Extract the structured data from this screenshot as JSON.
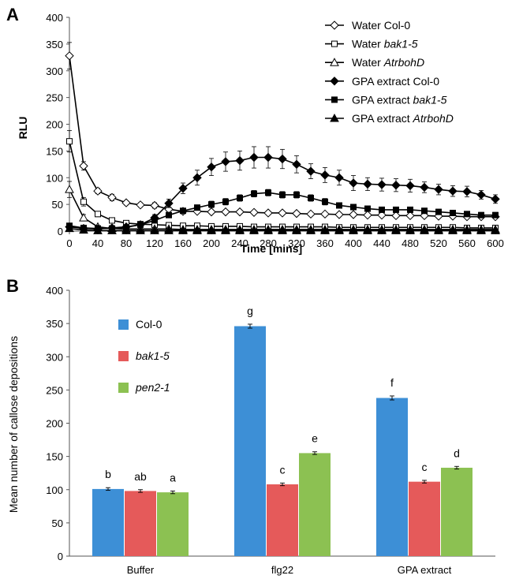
{
  "chart_data": [
    {
      "panel_label": "A",
      "type": "line",
      "xlabel": "Time [mins]",
      "ylabel": "RLU",
      "xlim": [
        0,
        600
      ],
      "ylim": [
        0,
        400
      ],
      "xticks": [
        0,
        40,
        80,
        120,
        160,
        200,
        240,
        280,
        320,
        360,
        400,
        440,
        480,
        520,
        560,
        600
      ],
      "yticks": [
        0,
        50,
        100,
        150,
        200,
        250,
        300,
        350,
        400
      ],
      "legend_position": "top-right",
      "x": [
        0,
        20,
        40,
        60,
        80,
        100,
        120,
        140,
        160,
        180,
        200,
        220,
        240,
        260,
        280,
        300,
        320,
        340,
        360,
        380,
        400,
        420,
        440,
        460,
        480,
        500,
        520,
        540,
        560,
        580,
        600
      ],
      "series": [
        {
          "name_prefix": "Water",
          "name_suffix": "Col-0",
          "suffix_italic": false,
          "marker": "diamond-open",
          "values": [
            328,
            122,
            75,
            63,
            53,
            49,
            48,
            41,
            37,
            37,
            36,
            36,
            36,
            35,
            34,
            34,
            33,
            32,
            32,
            31,
            31,
            30,
            30,
            29,
            29,
            29,
            28,
            28,
            27,
            27,
            27
          ],
          "errors": [
            25,
            8,
            5,
            6,
            4,
            4,
            5,
            3,
            3,
            3,
            3,
            3,
            3,
            3,
            3,
            3,
            3,
            3,
            3,
            3,
            3,
            3,
            3,
            3,
            3,
            3,
            3,
            3,
            3,
            3,
            3
          ]
        },
        {
          "name_prefix": "Water",
          "name_suffix": "bak1-5",
          "suffix_italic": true,
          "marker": "square-open",
          "values": [
            168,
            55,
            32,
            20,
            15,
            13,
            12,
            11,
            10,
            10,
            9,
            9,
            9,
            8,
            8,
            8,
            8,
            8,
            8,
            7,
            7,
            7,
            7,
            7,
            7,
            7,
            7,
            7,
            6,
            6,
            6
          ],
          "errors": [
            20,
            8,
            5,
            3,
            2,
            2,
            2,
            2,
            2,
            2,
            2,
            2,
            2,
            2,
            2,
            2,
            2,
            2,
            2,
            2,
            2,
            2,
            2,
            2,
            2,
            2,
            2,
            2,
            2,
            2,
            2
          ]
        },
        {
          "name_prefix": "Water",
          "name_suffix": "AtrbohD",
          "suffix_italic": true,
          "marker": "triangle-open",
          "values": [
            78,
            25,
            8,
            5,
            4,
            4,
            4,
            4,
            3,
            3,
            3,
            3,
            3,
            3,
            3,
            3,
            3,
            3,
            3,
            3,
            3,
            3,
            3,
            3,
            3,
            3,
            3,
            3,
            3,
            3,
            3
          ],
          "errors": [
            15,
            6,
            2,
            1,
            1,
            1,
            1,
            1,
            1,
            1,
            1,
            1,
            1,
            1,
            1,
            1,
            1,
            1,
            1,
            1,
            1,
            1,
            1,
            1,
            1,
            1,
            1,
            1,
            1,
            1,
            1
          ]
        },
        {
          "name_prefix": "GPA extract",
          "name_suffix": "Col-0",
          "suffix_italic": false,
          "marker": "diamond-filled",
          "values": [
            8,
            5,
            4,
            6,
            8,
            12,
            25,
            52,
            80,
            100,
            120,
            130,
            132,
            138,
            138,
            135,
            125,
            112,
            105,
            100,
            90,
            88,
            87,
            86,
            85,
            82,
            78,
            75,
            74,
            68,
            60
          ],
          "errors": [
            2,
            2,
            1,
            2,
            3,
            4,
            6,
            8,
            10,
            14,
            16,
            18,
            18,
            20,
            20,
            18,
            16,
            14,
            14,
            14,
            14,
            12,
            12,
            12,
            12,
            10,
            10,
            10,
            10,
            8,
            8
          ]
        },
        {
          "name_prefix": "GPA extract",
          "name_suffix": "bak1-5",
          "suffix_italic": true,
          "marker": "square-filled",
          "values": [
            10,
            6,
            5,
            5,
            7,
            12,
            20,
            30,
            38,
            44,
            50,
            55,
            62,
            70,
            72,
            68,
            68,
            62,
            55,
            48,
            45,
            42,
            40,
            40,
            40,
            38,
            36,
            34,
            32,
            30,
            30
          ],
          "errors": [
            2,
            2,
            1,
            1,
            2,
            3,
            4,
            5,
            5,
            5,
            6,
            6,
            6,
            6,
            6,
            6,
            6,
            6,
            6,
            5,
            5,
            5,
            5,
            5,
            5,
            5,
            5,
            5,
            5,
            5,
            5
          ]
        },
        {
          "name_prefix": "GPA extract",
          "name_suffix": "AtrbohD",
          "suffix_italic": true,
          "marker": "triangle-filled",
          "values": [
            5,
            2,
            1,
            1,
            1,
            1,
            1,
            1,
            1,
            1,
            1,
            1,
            1,
            1,
            1,
            1,
            1,
            1,
            1,
            1,
            1,
            1,
            1,
            1,
            1,
            1,
            1,
            1,
            1,
            1,
            1
          ],
          "errors": [
            1,
            1,
            0,
            0,
            0,
            0,
            0,
            0,
            0,
            0,
            0,
            0,
            0,
            0,
            0,
            0,
            0,
            0,
            0,
            0,
            0,
            0,
            0,
            0,
            0,
            0,
            0,
            0,
            0,
            0,
            0
          ]
        }
      ]
    },
    {
      "panel_label": "B",
      "type": "bar",
      "ylabel": "Mean number of callose depositions",
      "ylim": [
        0,
        400
      ],
      "yticks": [
        0,
        50,
        100,
        150,
        200,
        250,
        300,
        350,
        400
      ],
      "categories": [
        "Buffer",
        "flg22",
        "GPA extract"
      ],
      "legend_position": "top-left",
      "series": [
        {
          "name": "Col-0",
          "italic": false,
          "color": "#3d8fd6",
          "values": [
            101,
            346,
            238
          ],
          "errors": [
            2,
            3,
            3
          ],
          "letters": [
            "b",
            "g",
            "f"
          ]
        },
        {
          "name": "bak1-5",
          "italic": true,
          "color": "#e55a5a",
          "values": [
            98,
            108,
            112
          ],
          "errors": [
            2,
            2,
            2
          ],
          "letters": [
            "ab",
            "c",
            "c"
          ]
        },
        {
          "name": "pen2-1",
          "italic": true,
          "color": "#8cc152",
          "values": [
            96,
            155,
            133
          ],
          "errors": [
            2,
            2,
            2
          ],
          "letters": [
            "a",
            "e",
            "d"
          ]
        }
      ]
    }
  ]
}
